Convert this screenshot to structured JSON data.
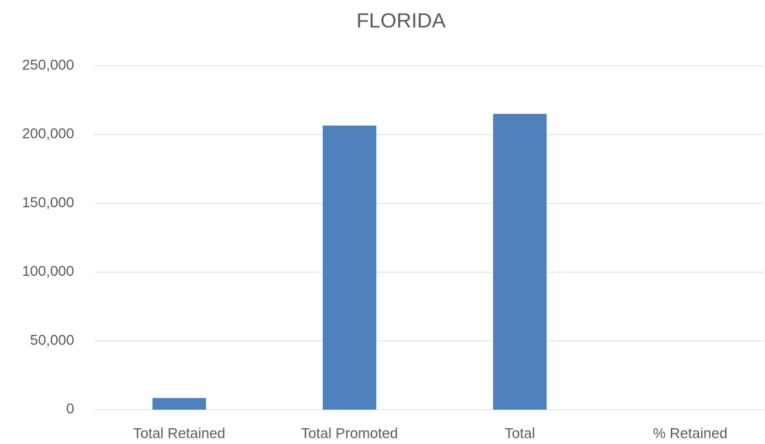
{
  "chart_data": {
    "type": "bar",
    "title": "FLORIDA",
    "categories": [
      "Total Retained",
      "Total Promoted",
      "Total",
      "% Retained"
    ],
    "values": [
      8500,
      206600,
      215100,
      4
    ],
    "color": "#4f81bd",
    "ylim": [
      0,
      250000
    ],
    "yticks": [
      0,
      {
        "value": 50000,
        "label": "50,000"
      },
      {
        "value": 100000,
        "label": "100,000"
      },
      {
        "value": 150000,
        "label": "150,000"
      },
      {
        "value": 200000,
        "label": "200,000"
      },
      {
        "value": 250000,
        "label": "250,000"
      }
    ],
    "grid": true
  }
}
